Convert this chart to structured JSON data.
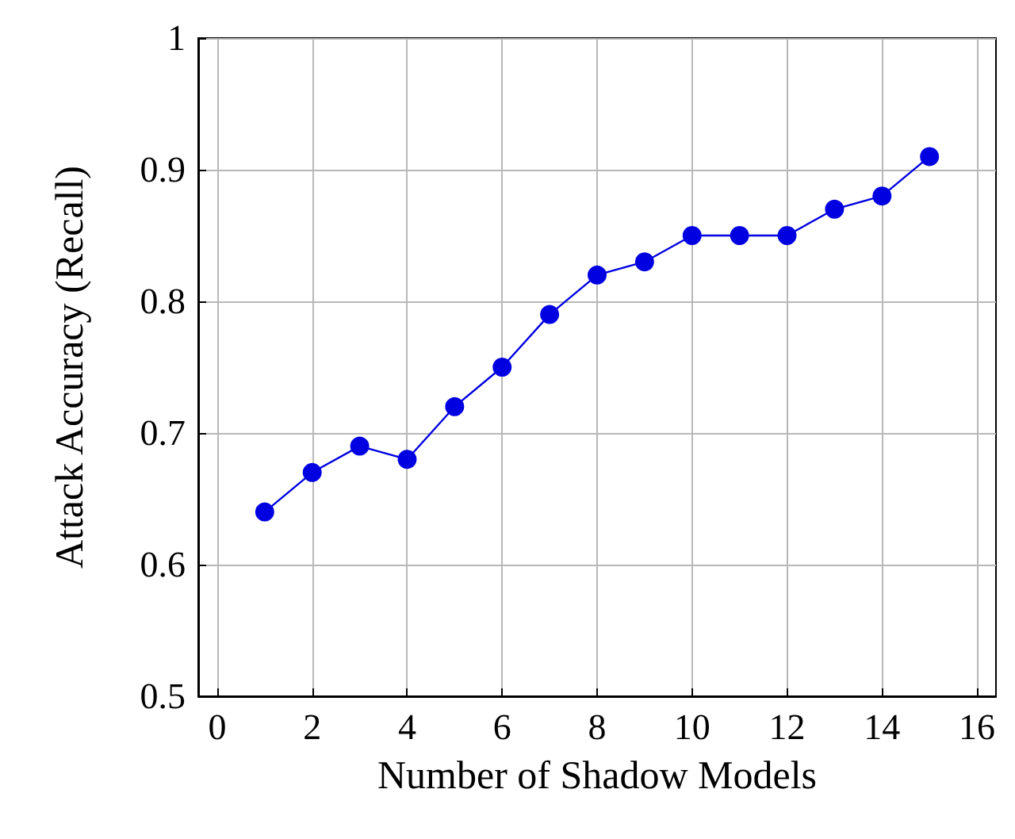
{
  "chart_data": {
    "type": "line",
    "xlabel": "Number of Shadow Models",
    "ylabel": "Attack Accuracy (Recall)",
    "x": [
      1,
      2,
      3,
      4,
      5,
      6,
      7,
      8,
      9,
      10,
      11,
      12,
      13,
      14,
      15
    ],
    "series": [
      {
        "color": "#0000e0",
        "values": [
          0.64,
          0.67,
          0.69,
          0.68,
          0.72,
          0.75,
          0.79,
          0.82,
          0.83,
          0.85,
          0.85,
          0.85,
          0.87,
          0.88,
          0.91
        ]
      }
    ],
    "xlim": [
      -0.4,
      16.4
    ],
    "xticks": [
      0,
      2,
      4,
      6,
      8,
      10,
      12,
      14,
      16
    ],
    "ylim": [
      0.5,
      1
    ],
    "yticks": [
      0.5,
      0.6,
      0.7,
      0.8,
      0.9,
      1
    ],
    "grid": true,
    "marker": "circle",
    "line_style": "solid"
  }
}
